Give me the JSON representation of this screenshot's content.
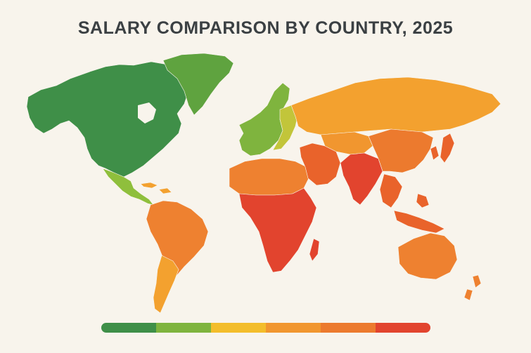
{
  "title": "SALARY COMPARISON BY COUNTRY, 2025",
  "colors": {
    "background": "#f8f4ec",
    "title": "#3b4043",
    "dark_green": "#3f8f48",
    "green": "#5fa33f",
    "light_green": "#9cc03b",
    "yellow": "#f3bd2b",
    "light_orange": "#f3a12f",
    "orange": "#ee8130",
    "dark_orange": "#e9632b",
    "red": "#e2442e"
  },
  "legend": {
    "segments": [
      {
        "color": "#3f8f48"
      },
      {
        "color": "#7fb43e"
      },
      {
        "color": "#f3bd2b"
      },
      {
        "color": "#f1962f"
      },
      {
        "color": "#ec7a2e"
      },
      {
        "color": "#e2442e"
      }
    ]
  },
  "regions": [
    {
      "name": "North America (Canada, USA, Alaska)",
      "color": "#3f8f48"
    },
    {
      "name": "Greenland",
      "color": "#5fa33f"
    },
    {
      "name": "Mexico & Central America",
      "color": "#8fbf3c"
    },
    {
      "name": "Caribbean",
      "color": "#f3a12f"
    },
    {
      "name": "South America",
      "color": "#ee8130"
    },
    {
      "name": "Argentina & Chile",
      "color": "#f3a12f"
    },
    {
      "name": "Western Europe",
      "color": "#7fb43e"
    },
    {
      "name": "Eastern Europe",
      "color": "#c2c53a"
    },
    {
      "name": "Russia",
      "color": "#f3a12f"
    },
    {
      "name": "North Africa",
      "color": "#ee8130"
    },
    {
      "name": "Sub-Saharan Africa",
      "color": "#e2442e"
    },
    {
      "name": "Madagascar",
      "color": "#e2442e"
    },
    {
      "name": "Middle East",
      "color": "#e9632b"
    },
    {
      "name": "Central Asia",
      "color": "#f1962f"
    },
    {
      "name": "South Asia",
      "color": "#e2442e"
    },
    {
      "name": "China",
      "color": "#ec7a2e"
    },
    {
      "name": "Southeast Asia",
      "color": "#e9632b"
    },
    {
      "name": "Japan & Korea",
      "color": "#e9632b"
    },
    {
      "name": "Australia",
      "color": "#ee8130"
    },
    {
      "name": "New Zealand",
      "color": "#ee8130"
    }
  ]
}
